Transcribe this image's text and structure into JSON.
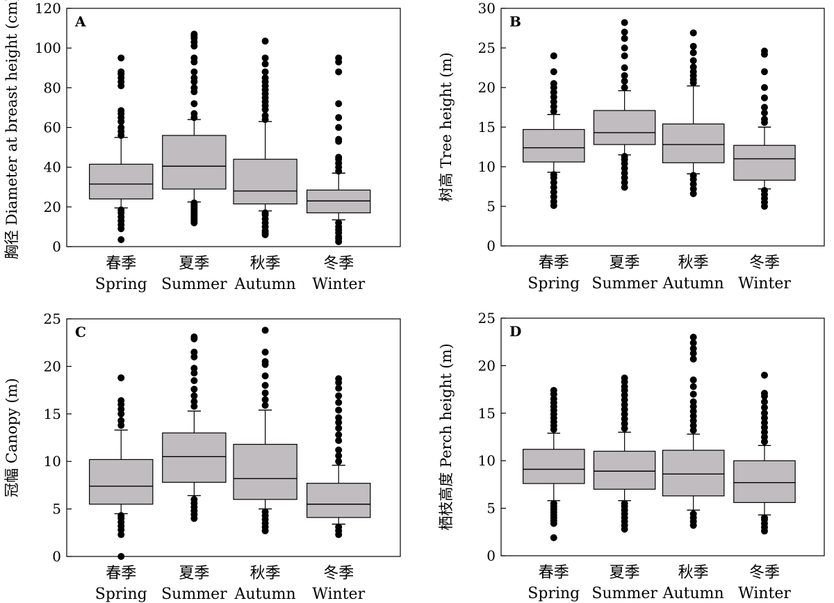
{
  "chart_data": [
    {
      "type": "box",
      "panel_label": "A",
      "ylabel": "胸径 Diameter at breast height (cm)",
      "ylim": [
        0,
        120
      ],
      "yticks": [
        0,
        20,
        40,
        60,
        80,
        100,
        120
      ],
      "categories": [
        {
          "cn": "春季",
          "en": "Spring"
        },
        {
          "cn": "夏季",
          "en": "Summer"
        },
        {
          "cn": "秋季",
          "en": "Autumn"
        },
        {
          "cn": "冬季",
          "en": "Winter"
        }
      ],
      "boxes": [
        {
          "whisker_low": 19.5,
          "q1": 24,
          "median": 31.5,
          "q3": 41.5,
          "whisker_high": 55,
          "outliers": [
            3.5,
            9,
            11,
            13,
            15,
            17,
            18.5,
            56,
            58,
            60,
            63,
            65,
            67,
            68.5,
            81,
            83,
            85,
            87,
            88,
            95
          ]
        },
        {
          "whisker_low": 22.5,
          "q1": 29,
          "median": 40.5,
          "q3": 56,
          "whisker_high": 64,
          "outliers": [
            12,
            13,
            14,
            15,
            16,
            17,
            18,
            19,
            20,
            21,
            22,
            65,
            67,
            72,
            78,
            80,
            83,
            85,
            88,
            93,
            95,
            101,
            103,
            105,
            106,
            107
          ]
        },
        {
          "whisker_low": 18,
          "q1": 21.5,
          "median": 28,
          "q3": 44,
          "whisker_high": 63,
          "outliers": [
            6,
            7,
            8,
            10,
            12,
            14,
            16,
            17,
            64,
            66,
            69,
            71,
            73,
            75,
            77,
            79,
            81,
            83,
            85,
            88,
            92,
            95,
            103.5
          ]
        },
        {
          "whisker_low": 13.5,
          "q1": 17,
          "median": 23,
          "q3": 28.5,
          "whisker_high": 37,
          "outliers": [
            2.5,
            4,
            5,
            7,
            8.5,
            10,
            12,
            38,
            40,
            42,
            44,
            45,
            53,
            54,
            60,
            65,
            72,
            88,
            93,
            95
          ]
        }
      ]
    },
    {
      "type": "box",
      "panel_label": "B",
      "ylabel": "树高 Tree height (m)",
      "ylim": [
        0,
        30
      ],
      "yticks": [
        0,
        5,
        10,
        15,
        20,
        25,
        30
      ],
      "categories": [
        {
          "cn": "春季",
          "en": "Spring"
        },
        {
          "cn": "夏季",
          "en": "Summer"
        },
        {
          "cn": "秋季",
          "en": "Autumn"
        },
        {
          "cn": "冬季",
          "en": "Winter"
        }
      ],
      "boxes": [
        {
          "whisker_low": 9.3,
          "q1": 10.6,
          "median": 12.4,
          "q3": 14.7,
          "whisker_high": 16.6,
          "outliers": [
            5.1,
            5.6,
            6.2,
            6.8,
            7.4,
            8.0,
            8.6,
            9.0,
            17.0,
            17.6,
            18.2,
            18.8,
            19.4,
            20.0,
            20.5,
            22.0,
            24.0
          ]
        },
        {
          "whisker_low": 11.5,
          "q1": 12.8,
          "median": 14.3,
          "q3": 17.1,
          "whisker_high": 19.6,
          "outliers": [
            7.4,
            8.0,
            8.6,
            9.2,
            9.8,
            10.4,
            10.9,
            11.3,
            20.0,
            20.8,
            21.5,
            22.5,
            24.0,
            25.0,
            26.2,
            27.0,
            28.2
          ]
        },
        {
          "whisker_low": 9.1,
          "q1": 10.5,
          "median": 12.8,
          "q3": 15.4,
          "whisker_high": 20.2,
          "outliers": [
            6.6,
            7.2,
            7.8,
            8.4,
            8.9,
            20.6,
            21.0,
            21.5,
            22.0,
            22.6,
            23.4,
            24.4,
            25.2,
            26.9
          ]
        },
        {
          "whisker_low": 7.2,
          "q1": 8.3,
          "median": 11.0,
          "q3": 12.7,
          "whisker_high": 15.0,
          "outliers": [
            5.0,
            5.5,
            6.0,
            6.5,
            7.0,
            15.6,
            16.0,
            16.8,
            17.5,
            18.7,
            20.0,
            22.0,
            24.2,
            24.6
          ]
        }
      ]
    },
    {
      "type": "box",
      "panel_label": "C",
      "ylabel": "冠幅 Canopy (m)",
      "ylim": [
        0,
        25
      ],
      "yticks": [
        0,
        5,
        10,
        15,
        20,
        25
      ],
      "categories": [
        {
          "cn": "春季",
          "en": "Spring"
        },
        {
          "cn": "夏季",
          "en": "Summer"
        },
        {
          "cn": "秋季",
          "en": "Autumn"
        },
        {
          "cn": "冬季",
          "en": "Winter"
        }
      ],
      "boxes": [
        {
          "whisker_low": 4.5,
          "q1": 5.5,
          "median": 7.4,
          "q3": 10.2,
          "whisker_high": 13.3,
          "outliers": [
            0.0,
            2.3,
            2.8,
            3.2,
            3.6,
            4.0,
            4.3,
            13.8,
            14.3,
            15.0,
            15.5,
            16.0,
            16.4,
            18.8
          ]
        },
        {
          "whisker_low": 6.4,
          "q1": 7.8,
          "median": 10.5,
          "q3": 13.0,
          "whisker_high": 15.3,
          "outliers": [
            4.0,
            4.4,
            4.8,
            5.2,
            5.6,
            6.0,
            15.8,
            16.3,
            16.9,
            17.6,
            18.5,
            19.3,
            19.8,
            21.0,
            21.5,
            22.9,
            23.1
          ]
        },
        {
          "whisker_low": 5.0,
          "q1": 6.0,
          "median": 8.2,
          "q3": 11.8,
          "whisker_high": 15.4,
          "outliers": [
            2.7,
            3.1,
            3.5,
            3.9,
            4.3,
            4.7,
            15.9,
            16.5,
            17.2,
            18.0,
            19.0,
            20.2,
            20.5,
            21.5,
            23.8
          ]
        },
        {
          "whisker_low": 3.4,
          "q1": 4.1,
          "median": 5.5,
          "q3": 7.7,
          "whisker_high": 9.6,
          "outliers": [
            2.3,
            2.7,
            3.1,
            10.0,
            10.6,
            11.2,
            12.2,
            12.8,
            13.5,
            14.1,
            14.6,
            15.4,
            16.2,
            16.9,
            17.7,
            18.3,
            18.7
          ]
        }
      ]
    },
    {
      "type": "box",
      "panel_label": "D",
      "ylabel": "栖枝高度 Perch height (m)",
      "ylim": [
        0,
        25
      ],
      "yticks": [
        0,
        5,
        10,
        15,
        20,
        25
      ],
      "categories": [
        {
          "cn": "春季",
          "en": "Spring"
        },
        {
          "cn": "夏季",
          "en": "Summer"
        },
        {
          "cn": "秋季",
          "en": "Autumn"
        },
        {
          "cn": "冬季",
          "en": "Winter"
        }
      ],
      "boxes": [
        {
          "whisker_low": 5.8,
          "q1": 7.6,
          "median": 9.1,
          "q3": 11.2,
          "whisker_high": 12.9,
          "outliers": [
            1.9,
            3.4,
            3.7,
            4.0,
            4.3,
            4.6,
            4.9,
            5.2,
            5.5,
            13.3,
            13.7,
            14.1,
            14.5,
            14.9,
            15.3,
            15.7,
            16.1,
            16.5,
            17.0,
            17.4
          ]
        },
        {
          "whisker_low": 5.8,
          "q1": 7.0,
          "median": 8.9,
          "q3": 11.0,
          "whisker_high": 13.0,
          "outliers": [
            2.8,
            3.2,
            3.6,
            4.0,
            4.4,
            4.8,
            5.2,
            5.5,
            13.4,
            13.9,
            14.4,
            14.9,
            15.4,
            15.9,
            16.4,
            16.9,
            17.4,
            17.8,
            18.3,
            18.7
          ]
        },
        {
          "whisker_low": 4.8,
          "q1": 6.3,
          "median": 8.6,
          "q3": 11.1,
          "whisker_high": 12.8,
          "outliers": [
            3.2,
            3.6,
            4.0,
            4.4,
            13.2,
            13.7,
            14.2,
            14.7,
            15.2,
            15.7,
            16.2,
            17.0,
            17.8,
            18.5,
            20.7,
            21.3,
            21.8,
            22.4,
            23.0
          ]
        },
        {
          "whisker_low": 4.3,
          "q1": 5.6,
          "median": 7.7,
          "q3": 10.0,
          "whisker_high": 11.6,
          "outliers": [
            2.6,
            3.0,
            3.4,
            3.8,
            4.0,
            12.0,
            12.5,
            13.0,
            13.5,
            14.0,
            14.5,
            15.0,
            15.6,
            16.2,
            16.8,
            17.1,
            19.0
          ]
        }
      ]
    }
  ]
}
